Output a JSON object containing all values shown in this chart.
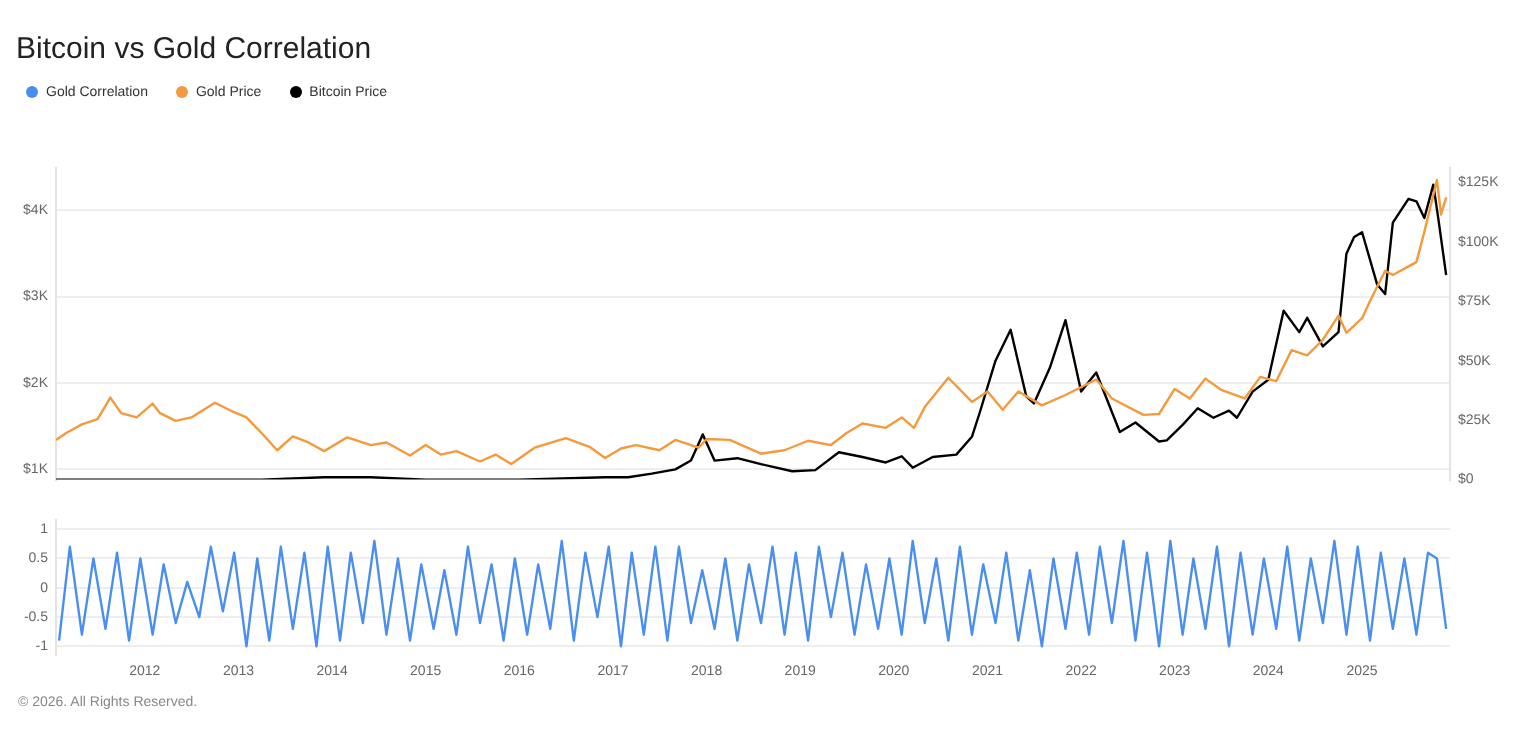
{
  "chart_data": [
    {
      "type": "line",
      "title": "Bitcoin vs Gold Correlation",
      "legend": "top left",
      "grid": "y",
      "marker": "none",
      "tick_labels": "y",
      "xlim": [
        "2011-01-20",
        "2025-12-10"
      ],
      "ylim": [
        880,
        4490
      ],
      "yticks": [
        {
          "value": 1000,
          "label": "$1K"
        },
        {
          "value": 2000,
          "label": "$2K"
        },
        {
          "value": 3000,
          "label": "$3K"
        },
        {
          "value": 4000,
          "label": "$4K"
        }
      ],
      "y2lim": [
        0,
        131000
      ],
      "y2ticks": [
        {
          "value": 0,
          "label": "$0"
        },
        {
          "value": 25000,
          "label": "$25K"
        },
        {
          "value": 50000,
          "label": "$50K"
        },
        {
          "value": 75000,
          "label": "$75K"
        },
        {
          "value": 100000,
          "label": "$100K"
        },
        {
          "value": 125000,
          "label": "$125K"
        }
      ],
      "series": [
        {
          "name": "Gold Price",
          "color": "#f59a3c",
          "x": [
            "2011-01-20",
            "2011-03",
            "2011-05",
            "2011-07",
            "2011-08-20",
            "2011-10",
            "2011-12",
            "2012-02",
            "2012-03",
            "2012-05",
            "2012-07",
            "2012-10",
            "2012-12",
            "2013-02",
            "2013-04",
            "2013-06",
            "2013-08",
            "2013-10",
            "2013-12",
            "2014-03",
            "2014-06",
            "2014-08",
            "2014-11",
            "2015-01",
            "2015-03",
            "2015-05",
            "2015-08",
            "2015-10",
            "2015-12",
            "2016-03",
            "2016-07",
            "2016-10",
            "2016-12",
            "2017-02",
            "2017-04",
            "2017-07",
            "2017-09",
            "2017-12",
            "2018-01",
            "2018-04",
            "2018-08",
            "2018-11",
            "2019-02",
            "2019-05",
            "2019-07",
            "2019-09",
            "2019-12",
            "2020-02",
            "2020-03-20",
            "2020-05",
            "2020-08",
            "2020-11",
            "2021-01",
            "2021-03",
            "2021-05",
            "2021-08",
            "2021-11",
            "2022-03",
            "2022-05",
            "2022-09",
            "2022-11",
            "2023-01",
            "2023-03",
            "2023-05",
            "2023-07",
            "2023-10",
            "2023-12",
            "2024-02",
            "2024-04",
            "2024-06",
            "2024-08",
            "2024-10",
            "2024-11",
            "2025-01",
            "2025-02",
            "2025-04",
            "2025-05",
            "2025-07",
            "2025-08",
            "2025-09",
            "2025-10-20",
            "2025-11-05",
            "2025-11-25"
          ],
          "values": [
            1340,
            1420,
            1520,
            1580,
            1830,
            1650,
            1600,
            1760,
            1650,
            1560,
            1600,
            1770,
            1680,
            1600,
            1420,
            1220,
            1380,
            1310,
            1210,
            1370,
            1280,
            1310,
            1160,
            1280,
            1170,
            1210,
            1090,
            1170,
            1060,
            1250,
            1360,
            1260,
            1130,
            1240,
            1280,
            1220,
            1340,
            1250,
            1350,
            1340,
            1180,
            1220,
            1330,
            1280,
            1420,
            1530,
            1480,
            1600,
            1480,
            1720,
            2060,
            1780,
            1900,
            1690,
            1900,
            1740,
            1860,
            2040,
            1820,
            1630,
            1640,
            1930,
            1820,
            2050,
            1920,
            1820,
            2070,
            2020,
            2380,
            2320,
            2500,
            2780,
            2580,
            2750,
            2950,
            3300,
            3250,
            3350,
            3400,
            3750,
            4350,
            3950,
            4150
          ]
        },
        {
          "name": "Bitcoin Price",
          "color": "#000000",
          "axis": "y2",
          "x": [
            "2011-01-20",
            "2013-04",
            "2013-12",
            "2014-06",
            "2015-01",
            "2016-01",
            "2016-12",
            "2017-03",
            "2017-06",
            "2017-09",
            "2017-11",
            "2017-12-17",
            "2018-02",
            "2018-05",
            "2018-08",
            "2018-12",
            "2019-03",
            "2019-06",
            "2019-09",
            "2019-12",
            "2020-02",
            "2020-03-15",
            "2020-06",
            "2020-09",
            "2020-11",
            "2020-12",
            "2021-02",
            "2021-04",
            "2021-06",
            "2021-07",
            "2021-09",
            "2021-11",
            "2022-01",
            "2022-03",
            "2022-06",
            "2022-08",
            "2022-11",
            "2022-12",
            "2023-02",
            "2023-04",
            "2023-06",
            "2023-08",
            "2023-09",
            "2023-11",
            "2024-01",
            "2024-03",
            "2024-05",
            "2024-06",
            "2024-08",
            "2024-10",
            "2024-11",
            "2024-12",
            "2025-01",
            "2025-03",
            "2025-04",
            "2025-05",
            "2025-07",
            "2025-08",
            "2025-09",
            "2025-10-06",
            "2025-10-25",
            "2025-11-25"
          ],
          "values": [
            0,
            0,
            1000,
            1000,
            0,
            0,
            1000,
            1000,
            2500,
            4300,
            8000,
            19000,
            8000,
            9000,
            6500,
            3500,
            4000,
            11500,
            9500,
            7200,
            9800,
            5000,
            9500,
            10500,
            18000,
            28000,
            50000,
            63000,
            35000,
            32000,
            47000,
            67000,
            37000,
            45000,
            20000,
            24000,
            16000,
            16500,
            23000,
            30000,
            26000,
            29000,
            26000,
            37000,
            42000,
            71000,
            62000,
            68000,
            56000,
            62000,
            95000,
            102000,
            104000,
            82000,
            78000,
            108000,
            118000,
            117000,
            110000,
            124000,
            110000,
            86000
          ]
        }
      ]
    },
    {
      "type": "line",
      "legend": "top left",
      "grid": "y",
      "marker": "none",
      "annotations": [
        "© 2026. All Rights Reserved."
      ],
      "xlim": [
        "2011-01-20",
        "2025-12-10"
      ],
      "xticks": [
        "2012",
        "2013",
        "2014",
        "2015",
        "2016",
        "2017",
        "2018",
        "2019",
        "2020",
        "2021",
        "2022",
        "2023",
        "2024",
        "2025"
      ],
      "ylim": [
        -1.15,
        1.15
      ],
      "yticks": [
        -1,
        -0.5,
        0,
        0.5,
        1
      ],
      "series": [
        {
          "name": "Gold Correlation",
          "color": "#4a8ff0",
          "x": [
            "2011-02-01",
            "2011-03-15",
            "2011-05-01",
            "2011-06-15",
            "2011-08-01",
            "2011-09-15",
            "2011-11-01",
            "2011-12-15",
            "2012-02-01",
            "2012-03-15",
            "2012-05-01",
            "2012-06-15",
            "2012-08-01",
            "2012-09-15",
            "2012-11-01",
            "2012-12-15",
            "2013-02-01",
            "2013-03-15",
            "2013-05-01",
            "2013-06-15",
            "2013-08-01",
            "2013-09-15",
            "2013-11-01",
            "2013-12-15",
            "2014-02-01",
            "2014-03-15",
            "2014-05-01",
            "2014-06-15",
            "2014-08-01",
            "2014-09-15",
            "2014-11-01",
            "2014-12-15",
            "2015-02-01",
            "2015-03-15",
            "2015-05-01",
            "2015-06-15",
            "2015-08-01",
            "2015-09-15",
            "2015-11-01",
            "2015-12-15",
            "2016-02-01",
            "2016-03-15",
            "2016-05-01",
            "2016-06-15",
            "2016-08-01",
            "2016-09-15",
            "2016-11-01",
            "2016-12-15",
            "2017-02-01",
            "2017-03-15",
            "2017-05-01",
            "2017-06-15",
            "2017-08-01",
            "2017-09-15",
            "2017-11-01",
            "2017-12-15",
            "2018-02-01",
            "2018-03-15",
            "2018-05-01",
            "2018-06-15",
            "2018-08-01",
            "2018-09-15",
            "2018-11-01",
            "2018-12-15",
            "2019-02-01",
            "2019-03-15",
            "2019-05-01",
            "2019-06-15",
            "2019-08-01",
            "2019-09-15",
            "2019-11-01",
            "2019-12-15",
            "2020-02-01",
            "2020-03-15",
            "2020-05-01",
            "2020-06-15",
            "2020-08-01",
            "2020-09-15",
            "2020-11-01",
            "2020-12-15",
            "2021-02-01",
            "2021-03-15",
            "2021-05-01",
            "2021-06-15",
            "2021-08-01",
            "2021-09-15",
            "2021-11-01",
            "2021-12-15",
            "2022-02-01",
            "2022-03-15",
            "2022-05-01",
            "2022-06-15",
            "2022-08-01",
            "2022-09-15",
            "2022-11-01",
            "2022-12-15",
            "2023-02-01",
            "2023-03-15",
            "2023-05-01",
            "2023-06-15",
            "2023-08-01",
            "2023-09-15",
            "2023-11-01",
            "2023-12-15",
            "2024-02-01",
            "2024-03-15",
            "2024-05-01",
            "2024-06-15",
            "2024-08-01",
            "2024-09-15",
            "2024-11-01",
            "2024-12-15",
            "2025-02-01",
            "2025-03-15",
            "2025-05-01",
            "2025-06-15",
            "2025-08-01",
            "2025-09-15",
            "2025-10-20",
            "2025-11-25"
          ],
          "values": [
            -0.9,
            0.7,
            -0.8,
            0.5,
            -0.7,
            0.6,
            -0.9,
            0.5,
            -0.8,
            0.4,
            -0.6,
            0.1,
            -0.5,
            0.7,
            -0.4,
            0.6,
            -1.0,
            0.5,
            -0.9,
            0.7,
            -0.7,
            0.6,
            -1.0,
            0.7,
            -0.9,
            0.6,
            -0.6,
            0.8,
            -0.8,
            0.5,
            -0.9,
            0.4,
            -0.7,
            0.3,
            -0.8,
            0.7,
            -0.6,
            0.4,
            -0.9,
            0.5,
            -0.8,
            0.4,
            -0.7,
            0.8,
            -0.9,
            0.6,
            -0.5,
            0.7,
            -1.0,
            0.6,
            -0.8,
            0.7,
            -0.9,
            0.7,
            -0.6,
            0.3,
            -0.7,
            0.5,
            -0.9,
            0.4,
            -0.6,
            0.7,
            -0.8,
            0.6,
            -0.9,
            0.7,
            -0.5,
            0.6,
            -0.8,
            0.4,
            -0.7,
            0.5,
            -0.8,
            0.8,
            -0.6,
            0.5,
            -0.9,
            0.7,
            -0.8,
            0.4,
            -0.6,
            0.6,
            -0.9,
            0.3,
            -1.0,
            0.5,
            -0.7,
            0.6,
            -0.8,
            0.7,
            -0.6,
            0.8,
            -0.9,
            0.6,
            -1.0,
            0.8,
            -0.8,
            0.5,
            -0.7,
            0.7,
            -1.0,
            0.6,
            -0.8,
            0.5,
            -0.7,
            0.7,
            -0.9,
            0.5,
            -0.6,
            0.8,
            -0.8,
            0.7,
            -0.9,
            0.6,
            -0.7,
            0.5,
            -0.8,
            0.6,
            0.5,
            -0.7
          ]
        }
      ]
    }
  ]
}
